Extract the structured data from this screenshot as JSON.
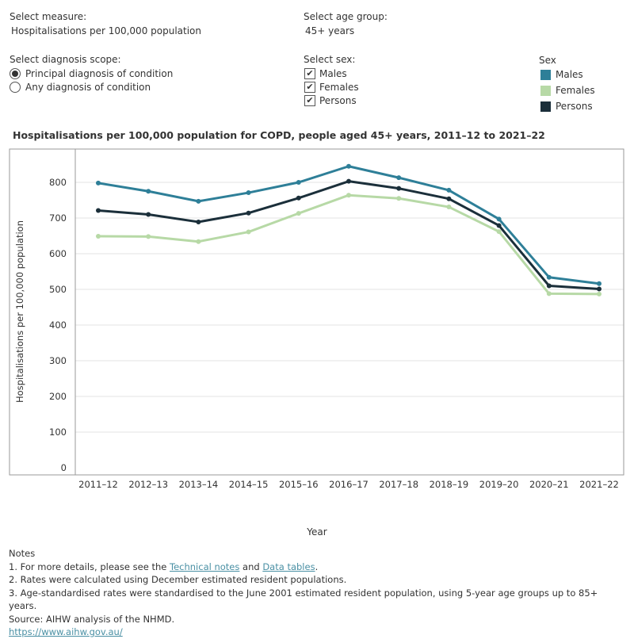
{
  "controls": {
    "measure": {
      "label": "Select measure:",
      "value": "Hospitalisations per 100,000 population"
    },
    "age_group": {
      "label": "Select age group:",
      "value": "45+ years"
    },
    "diagnosis_scope": {
      "label": "Select diagnosis scope:",
      "options": [
        {
          "label": "Principal diagnosis of condition",
          "selected": true
        },
        {
          "label": "Any diagnosis of condition",
          "selected": false
        }
      ]
    },
    "sex": {
      "label": "Select sex:",
      "options": [
        {
          "label": "Males",
          "checked": true,
          "mark": "✔"
        },
        {
          "label": "Females",
          "checked": true,
          "mark": "✔"
        },
        {
          "label": "Persons",
          "checked": true,
          "mark": "✔"
        }
      ]
    }
  },
  "legend": {
    "title": "Sex",
    "items": [
      {
        "label": "Males",
        "color": "#2e7f98"
      },
      {
        "label": "Females",
        "color": "#b7d9a6"
      },
      {
        "label": "Persons",
        "color": "#1b2f3a"
      }
    ]
  },
  "chart_data": {
    "type": "line",
    "title": "Hospitalisations per 100,000 population for COPD, people aged 45+ years, 2011–12 to 2021–22",
    "xlabel": "Year",
    "ylabel": "Hospitalisations per 100,000 population",
    "categories": [
      "2011–12",
      "2012–13",
      "2013–14",
      "2014–15",
      "2015–16",
      "2016–17",
      "2017–18",
      "2018–19",
      "2019–20",
      "2020–21",
      "2021–22"
    ],
    "yticks": [
      0,
      100,
      200,
      300,
      400,
      500,
      600,
      700,
      800
    ],
    "ylim": [
      0,
      890
    ],
    "grid": true,
    "series": [
      {
        "name": "Males",
        "color": "#2e7f98",
        "values": [
          798,
          775,
          747,
          771,
          800,
          845,
          813,
          778,
          697,
          534,
          516
        ]
      },
      {
        "name": "Females",
        "color": "#b7d9a6",
        "values": [
          649,
          648,
          634,
          661,
          713,
          764,
          755,
          731,
          662,
          488,
          487
        ]
      },
      {
        "name": "Persons",
        "color": "#1b2f3a",
        "values": [
          721,
          710,
          689,
          714,
          756,
          803,
          783,
          754,
          679,
          510,
          501
        ]
      }
    ]
  },
  "notes": {
    "heading": "Notes",
    "line1_prefix": "1. For more details, please see the ",
    "line1_link1": "Technical notes",
    "line1_mid": " and ",
    "line1_link2": "Data tables",
    "line1_suffix": ".",
    "line2": "2. Rates were calculated using December estimated resident populations.",
    "line3": "3. Age-standardised rates were standardised to the June 2001 estimated resident population, using 5-year age groups up to 85+ years.",
    "source": "Source: AIHW analysis of the NHMD.",
    "url": "https://www.aihw.gov.au/"
  }
}
